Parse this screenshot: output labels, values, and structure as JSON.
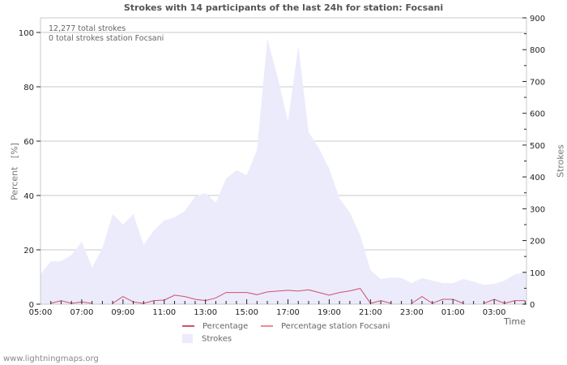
{
  "title": "Strokes with 14 participants of the last 24h for station: Focsani",
  "info": {
    "total_strokes": "12,277 total strokes",
    "station_strokes": "0 total strokes station Focsani"
  },
  "axes": {
    "left_label": "Percent   [%]",
    "right_label": "Strokes",
    "x_label": "Time"
  },
  "legend": {
    "percentage": "Percentage",
    "percentage_station": "Percentage station Focsani",
    "strokes": "Strokes"
  },
  "footer": "www.lightningmaps.org",
  "colors": {
    "strokes_fill": "#ebebfc",
    "percentage_line": "#d0506a",
    "percentage_station_line": "#f08a90",
    "grid": "#c8c8c8"
  },
  "chart_data": {
    "type": "area",
    "title": "Strokes with 14 participants of the last 24h for station: Focsani",
    "xlabel": "Time",
    "ylabel": "Percent [%]",
    "y2label": "Strokes",
    "ylim": [
      0,
      105
    ],
    "y2lim": [
      0,
      900
    ],
    "yticks": [
      0,
      20,
      40,
      60,
      80,
      100
    ],
    "y2ticks": [
      0,
      100,
      200,
      300,
      400,
      500,
      600,
      700,
      800,
      900
    ],
    "xticks": [
      "05:00",
      "07:00",
      "09:00",
      "11:00",
      "13:00",
      "15:00",
      "17:00",
      "19:00",
      "21:00",
      "23:00",
      "01:00",
      "03:00"
    ],
    "grid": true,
    "legend_position": "bottom",
    "x": [
      "05:00",
      "05:30",
      "06:00",
      "06:30",
      "07:00",
      "07:30",
      "08:00",
      "08:30",
      "09:00",
      "09:30",
      "10:00",
      "10:30",
      "11:00",
      "11:30",
      "12:00",
      "12:30",
      "13:00",
      "13:30",
      "14:00",
      "14:30",
      "15:00",
      "15:30",
      "16:00",
      "16:30",
      "17:00",
      "17:30",
      "18:00",
      "18:30",
      "19:00",
      "19:30",
      "20:00",
      "20:30",
      "21:00",
      "21:30",
      "22:00",
      "22:30",
      "23:00",
      "23:30",
      "00:00",
      "00:30",
      "01:00",
      "01:30",
      "02:00",
      "02:30",
      "03:00",
      "03:30",
      "04:00",
      "04:30"
    ],
    "series": [
      {
        "name": "Strokes",
        "axis": "right",
        "type": "area",
        "values": [
          94,
          135,
          135,
          155,
          196,
          115,
          176,
          283,
          250,
          283,
          186,
          232,
          263,
          273,
          293,
          339,
          349,
          319,
          395,
          421,
          406,
          485,
          834,
          714,
          574,
          811,
          541,
          490,
          426,
          332,
          288,
          217,
          107,
          79,
          84,
          82,
          66,
          82,
          74,
          66,
          66,
          79,
          71,
          61,
          64,
          74,
          94,
          99
        ]
      },
      {
        "name": "Percentage",
        "axis": "left",
        "type": "line",
        "values": [
          null,
          0,
          1,
          0,
          0.5,
          0,
          null,
          0,
          2.5,
          0.5,
          0,
          1,
          1.2,
          3,
          2.5,
          1.5,
          1,
          2,
          4,
          4,
          4,
          3.2,
          4.2,
          4.5,
          4.8,
          4.5,
          5,
          4,
          3,
          4,
          4.6,
          5.5,
          0,
          1,
          0,
          null,
          0,
          2.5,
          0,
          1.5,
          1.5,
          0,
          null,
          0,
          1.5,
          0,
          1,
          1
        ]
      },
      {
        "name": "Percentage station Focsani",
        "axis": "left",
        "type": "line",
        "values": []
      }
    ]
  }
}
